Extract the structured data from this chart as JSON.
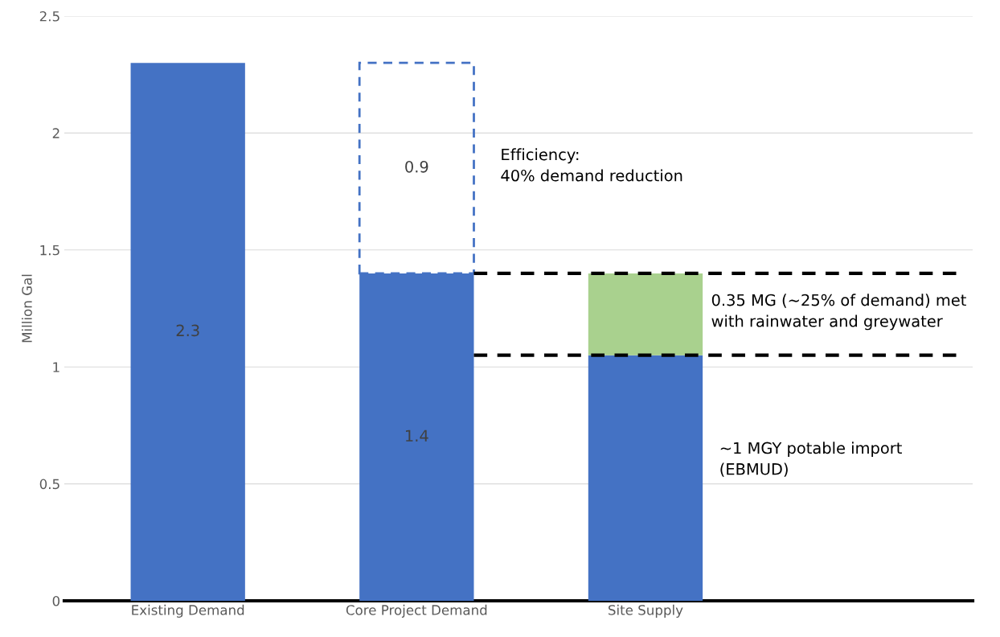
{
  "chart_data": {
    "type": "bar",
    "stacked": true,
    "ylabel": "Million Gal",
    "categories": [
      "Existing Demand",
      "Core Project Demand",
      "Site Supply"
    ],
    "series": [
      {
        "color": "#4472c4",
        "values": [
          2.3,
          1.4,
          1.05
        ],
        "value_labels": [
          "2.3",
          "1.4",
          null
        ]
      },
      {
        "color": "#4472c4",
        "values": [
          null,
          0.9,
          null
        ],
        "value_labels": [
          null,
          "0.9",
          null
        ],
        "line_style": "dashed"
      },
      {
        "color": "#a9d18e",
        "values": [
          null,
          null,
          0.35
        ]
      }
    ],
    "ylim": [
      0,
      2.5
    ],
    "yticks": [
      0,
      0.5,
      1,
      1.5,
      2,
      2.5
    ],
    "grid": "y",
    "ref_lines": [
      {
        "axis": "y",
        "value": 1.4,
        "color": "#000000",
        "line_style": "dashed"
      },
      {
        "axis": "y",
        "value": 1.05,
        "color": "#000000",
        "line_style": "dashed"
      }
    ],
    "annotations": [
      "Efficiency:\n40% demand reduction",
      "0.35 MG (~25% of demand) met\nwith rainwater and greywater",
      "~1 MGY potable import\n(EBMUD)"
    ]
  }
}
